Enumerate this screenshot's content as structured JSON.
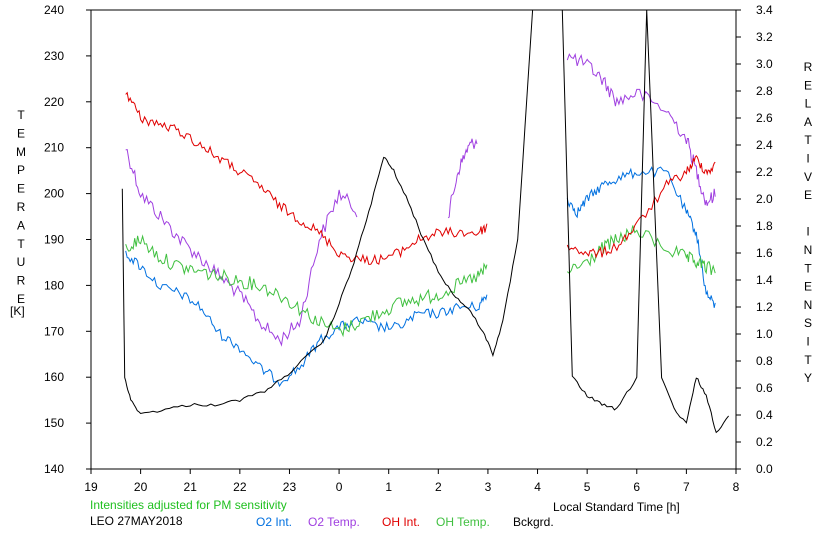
{
  "chart_data": {
    "type": "line",
    "ylabel_left": "TEMPERATURE",
    "ylabel_left_unit": "[K]",
    "ylabel_right": "RELATIVE INTENSITY",
    "xlabel": "Local Standard Time [h]",
    "note": "Intensities adjusted for PM sensitivity",
    "site_date": "LEO 27MAY2018",
    "x_ticks": [
      "19",
      "20",
      "21",
      "22",
      "23",
      "0",
      "1",
      "2",
      "3",
      "4",
      "5",
      "6",
      "7",
      "8"
    ],
    "x_range": [
      19,
      32
    ],
    "y_left_ticks": [
      "140",
      "150",
      "160",
      "170",
      "180",
      "190",
      "200",
      "210",
      "220",
      "230",
      "240"
    ],
    "y_left_range": [
      140,
      240
    ],
    "y_right_ticks": [
      "0.0",
      "0.2",
      "0.4",
      "0.6",
      "0.8",
      "1.0",
      "1.2",
      "1.4",
      "1.6",
      "1.8",
      "2.0",
      "2.2",
      "2.4",
      "2.6",
      "2.8",
      "3.0",
      "3.2",
      "3.4"
    ],
    "y_right_range": [
      0,
      3.4
    ],
    "series": [
      {
        "name": "O2 Int.",
        "color": "#0070e0",
        "axis": "right",
        "points": [
          [
            19.7,
            1.6
          ],
          [
            20.0,
            1.5
          ],
          [
            20.4,
            1.35
          ],
          [
            20.8,
            1.3
          ],
          [
            21.2,
            1.2
          ],
          [
            21.6,
            1.0
          ],
          [
            22.0,
            0.9
          ],
          [
            22.4,
            0.75
          ],
          [
            22.8,
            0.65
          ],
          [
            23.2,
            0.75
          ],
          [
            23.6,
            0.95
          ],
          [
            24.0,
            1.05
          ],
          [
            24.4,
            1.1
          ],
          [
            24.8,
            1.05
          ],
          [
            25.2,
            1.05
          ],
          [
            25.6,
            1.15
          ],
          [
            26.0,
            1.15
          ],
          [
            26.4,
            1.2
          ],
          [
            26.8,
            1.2
          ],
          [
            27.0,
            1.3
          ],
          [
            28.6,
            2.0
          ],
          [
            28.8,
            1.9
          ],
          [
            29.0,
            2.0
          ],
          [
            29.3,
            2.1
          ],
          [
            29.6,
            2.15
          ],
          [
            30.0,
            2.2
          ],
          [
            30.6,
            2.2
          ],
          [
            31.0,
            1.9
          ],
          [
            31.2,
            1.75
          ],
          [
            31.4,
            1.3
          ],
          [
            31.6,
            1.2
          ]
        ]
      },
      {
        "name": "O2 Temp.",
        "color": "#a040e0",
        "axis": "left",
        "points": [
          [
            19.7,
            210
          ],
          [
            20.0,
            200
          ],
          [
            20.4,
            195
          ],
          [
            20.8,
            190
          ],
          [
            21.2,
            186
          ],
          [
            21.6,
            182
          ],
          [
            22.0,
            178
          ],
          [
            22.4,
            172
          ],
          [
            22.8,
            168
          ],
          [
            23.2,
            172
          ],
          [
            23.6,
            190
          ],
          [
            24.0,
            200
          ],
          [
            24.4,
            196
          ],
          [
            26.2,
            195
          ],
          [
            26.4,
            205
          ],
          [
            26.6,
            210
          ],
          [
            26.8,
            212
          ],
          [
            28.6,
            230
          ],
          [
            29.0,
            228
          ],
          [
            29.3,
            225
          ],
          [
            29.6,
            220
          ],
          [
            30.0,
            222
          ],
          [
            30.6,
            218
          ],
          [
            31.0,
            212
          ],
          [
            31.2,
            205
          ],
          [
            31.4,
            198
          ],
          [
            31.6,
            200
          ]
        ]
      },
      {
        "name": "OH Int.",
        "color": "#e00000",
        "axis": "right",
        "points": [
          [
            19.7,
            2.8
          ],
          [
            20.0,
            2.6
          ],
          [
            20.4,
            2.55
          ],
          [
            20.8,
            2.5
          ],
          [
            21.2,
            2.4
          ],
          [
            21.6,
            2.3
          ],
          [
            22.0,
            2.2
          ],
          [
            22.4,
            2.1
          ],
          [
            22.8,
            1.95
          ],
          [
            23.2,
            1.85
          ],
          [
            23.6,
            1.75
          ],
          [
            24.0,
            1.6
          ],
          [
            24.4,
            1.55
          ],
          [
            24.8,
            1.55
          ],
          [
            25.2,
            1.6
          ],
          [
            25.6,
            1.7
          ],
          [
            26.0,
            1.75
          ],
          [
            26.4,
            1.75
          ],
          [
            26.8,
            1.75
          ],
          [
            27.0,
            1.8
          ],
          [
            28.6,
            1.65
          ],
          [
            29.0,
            1.6
          ],
          [
            29.3,
            1.6
          ],
          [
            29.6,
            1.65
          ],
          [
            30.0,
            1.8
          ],
          [
            30.6,
            2.1
          ],
          [
            31.0,
            2.2
          ],
          [
            31.2,
            2.3
          ],
          [
            31.4,
            2.2
          ],
          [
            31.6,
            2.25
          ]
        ]
      },
      {
        "name": "OH Temp.",
        "color": "#40c040",
        "axis": "left",
        "points": [
          [
            19.7,
            188
          ],
          [
            20.0,
            190
          ],
          [
            20.4,
            186
          ],
          [
            20.8,
            184
          ],
          [
            21.2,
            183
          ],
          [
            21.6,
            182
          ],
          [
            22.0,
            181
          ],
          [
            22.4,
            180
          ],
          [
            22.8,
            178
          ],
          [
            23.2,
            175
          ],
          [
            23.6,
            172
          ],
          [
            24.0,
            170
          ],
          [
            24.4,
            172
          ],
          [
            24.8,
            174
          ],
          [
            25.2,
            176
          ],
          [
            25.6,
            177
          ],
          [
            26.0,
            178
          ],
          [
            26.4,
            180
          ],
          [
            26.8,
            182
          ],
          [
            27.0,
            184
          ],
          [
            28.6,
            183
          ],
          [
            29.0,
            185
          ],
          [
            29.3,
            188
          ],
          [
            29.6,
            190
          ],
          [
            30.0,
            192
          ],
          [
            30.6,
            188
          ],
          [
            31.0,
            186
          ],
          [
            31.2,
            185
          ],
          [
            31.4,
            184
          ],
          [
            31.6,
            183
          ]
        ]
      },
      {
        "name": "Bckgrd.",
        "color": "#000000",
        "axis": "left",
        "points": [
          [
            19.63,
            201
          ],
          [
            19.68,
            160
          ],
          [
            19.8,
            155
          ],
          [
            20.0,
            152
          ],
          [
            20.5,
            153
          ],
          [
            21.0,
            154
          ],
          [
            21.5,
            154
          ],
          [
            22.0,
            155
          ],
          [
            22.5,
            157
          ],
          [
            22.9,
            160
          ],
          [
            23.3,
            164
          ],
          [
            23.7,
            168
          ],
          [
            24.0,
            176
          ],
          [
            24.3,
            185
          ],
          [
            24.6,
            196
          ],
          [
            24.9,
            208
          ],
          [
            25.1,
            205
          ],
          [
            25.4,
            198
          ],
          [
            25.7,
            190
          ],
          [
            26.0,
            183
          ],
          [
            26.3,
            178
          ],
          [
            26.6,
            175
          ],
          [
            26.9,
            170
          ],
          [
            27.1,
            165
          ],
          [
            27.3,
            172
          ],
          [
            27.6,
            190
          ],
          [
            27.9,
            240
          ],
          [
            28.2,
            240
          ],
          [
            28.5,
            240
          ],
          [
            28.7,
            160
          ],
          [
            29.0,
            156
          ],
          [
            29.3,
            154
          ],
          [
            29.6,
            153
          ],
          [
            30.0,
            160
          ],
          [
            30.2,
            240
          ],
          [
            30.5,
            160
          ],
          [
            30.8,
            152
          ],
          [
            31.0,
            150
          ],
          [
            31.2,
            160
          ],
          [
            31.4,
            156
          ],
          [
            31.6,
            148
          ],
          [
            31.9,
            152
          ]
        ]
      }
    ]
  }
}
